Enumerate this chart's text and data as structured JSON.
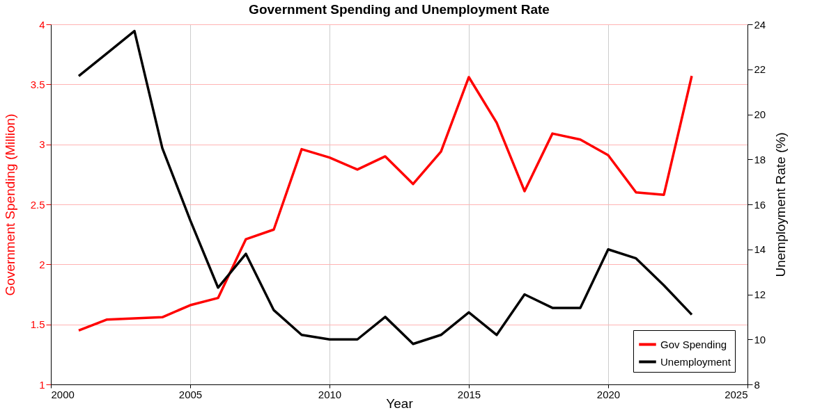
{
  "chart_data": {
    "type": "line",
    "title": "Government Spending and Unemployment Rate",
    "xlabel": "Year",
    "ylabel": "Government Spending (Million)",
    "y2label": "Unemployment Rate (%)",
    "x": [
      2001,
      2002,
      2003,
      2004,
      2005,
      2006,
      2007,
      2008,
      2009,
      2010,
      2011,
      2012,
      2013,
      2014,
      2015,
      2016,
      2017,
      2018,
      2019,
      2020,
      2021,
      2022,
      2023
    ],
    "series": [
      {
        "name": "Gov Spending",
        "color": "#ff0000",
        "values": [
          1.45,
          1.54,
          1.55,
          1.56,
          1.66,
          1.72,
          2.21,
          2.29,
          2.96,
          2.89,
          2.79,
          2.9,
          2.67,
          2.94,
          3.56,
          3.18,
          2.61,
          3.09,
          3.04,
          2.91,
          2.6,
          2.58,
          3.57
        ]
      },
      {
        "name": "Unemployment",
        "color": "#000000",
        "axis": "y2",
        "values": [
          21.7,
          22.7,
          23.7,
          18.5,
          15.3,
          12.3,
          13.8,
          11.3,
          10.2,
          10.0,
          10.0,
          11.0,
          9.8,
          10.2,
          11.2,
          10.2,
          12.0,
          11.4,
          11.4,
          14.0,
          13.6,
          12.4,
          11.1
        ]
      }
    ],
    "xlim": [
      2000,
      2025
    ],
    "xticks": [
      2000,
      2005,
      2010,
      2015,
      2020,
      2025
    ],
    "ylim": [
      1,
      4
    ],
    "yticks": [
      1,
      1.5,
      2,
      2.5,
      3,
      3.5,
      4
    ],
    "y2lim": [
      8,
      24
    ],
    "y2ticks": [
      8,
      10,
      12,
      14,
      16,
      18,
      20,
      22,
      24
    ],
    "grid": true,
    "legend": "bottom right",
    "marker": "none",
    "line_style": "solid"
  }
}
